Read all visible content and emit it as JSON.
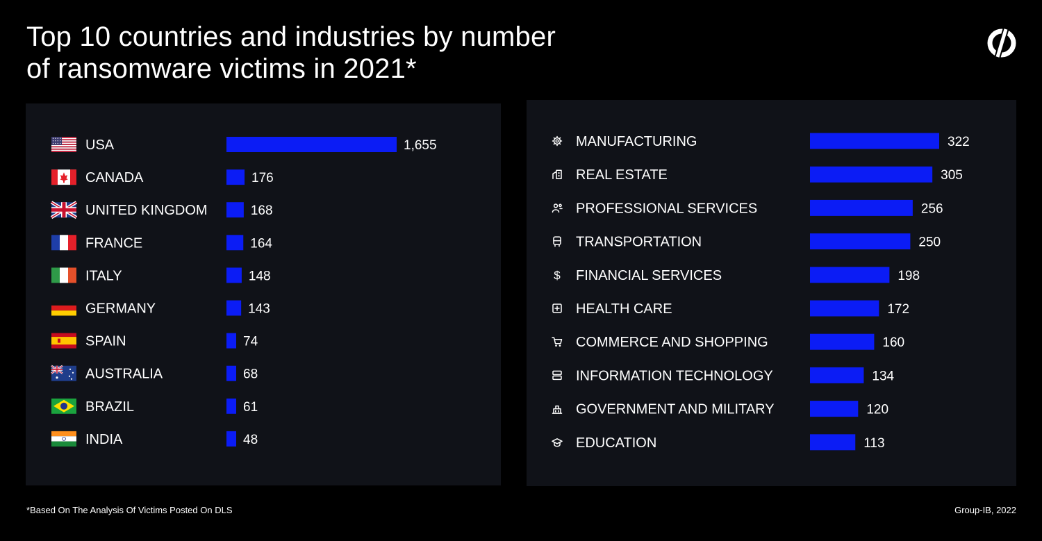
{
  "header": {
    "title_line1": "Top 10 countries and industries by number",
    "title_line2": "of ransomware victims in 2021*"
  },
  "footer": {
    "footnote": "*Based On The Analysis Of Victims Posted On DLS",
    "source": "Group-IB, 2022"
  },
  "colors": {
    "bar": "#0b1cf5",
    "background": "#000000",
    "panel": "#101218",
    "text": "#ffffff"
  },
  "chart_data": [
    {
      "type": "bar",
      "orientation": "horizontal",
      "categories": [
        "USA",
        "CANADA",
        "UNITED KINGDOM",
        "FRANCE",
        "ITALY",
        "GERMANY",
        "SPAIN",
        "AUSTRALIA",
        "BRAZIL",
        "INDIA"
      ],
      "values": [
        1655,
        176,
        168,
        164,
        148,
        143,
        74,
        68,
        61,
        48
      ],
      "value_labels": [
        "1,655",
        "176",
        "168",
        "164",
        "148",
        "143",
        "74",
        "68",
        "61",
        "48"
      ],
      "icons": [
        "flag-usa",
        "flag-canada",
        "flag-united-kingdom",
        "flag-france",
        "flag-italy",
        "flag-germany",
        "flag-spain",
        "flag-australia",
        "flag-brazil",
        "flag-india"
      ],
      "grid": false,
      "legend": "none"
    },
    {
      "type": "bar",
      "orientation": "horizontal",
      "categories": [
        "MANUFACTURING",
        "REAL ESTATE",
        "PROFESSIONAL SERVICES",
        "TRANSPORTATION",
        "FINANCIAL SERVICES",
        "HEALTH CARE",
        "COMMERCE AND SHOPPING",
        "INFORMATION TECHNOLOGY",
        "GOVERNMENT AND MILITARY",
        "EDUCATION"
      ],
      "values": [
        322,
        305,
        256,
        250,
        198,
        172,
        160,
        134,
        120,
        113
      ],
      "value_labels": [
        "322",
        "305",
        "256",
        "250",
        "198",
        "172",
        "160",
        "134",
        "120",
        "113"
      ],
      "icons": [
        "gear-icon",
        "building-icon",
        "people-icon",
        "bus-icon",
        "dollar-icon",
        "medical-cross-icon",
        "cart-icon",
        "server-icon",
        "government-building-icon",
        "graduation-cap-icon"
      ],
      "grid": false,
      "legend": "none"
    }
  ]
}
